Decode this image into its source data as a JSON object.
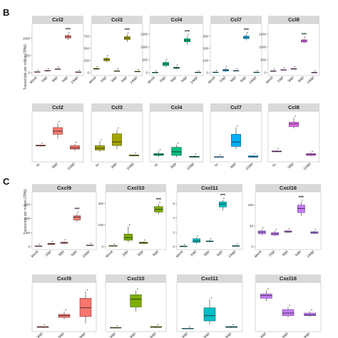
{
  "figure": {
    "letters": [
      "B",
      "C"
    ],
    "ylabel": "Transcripts per million (TPM)",
    "colors": {
      "red": "#f8766d",
      "olive": "#a3a500",
      "green": "#00bf7d",
      "blue": "#00b0f6",
      "magenta": "#e76bf3",
      "lime": "#7cae00",
      "cyan": "#00bfc4",
      "purple": "#c77cff"
    }
  },
  "chart_data": [
    {
      "type": "box",
      "title": "Ccl2",
      "color": "red",
      "categories": [
        "Mock",
        "2dpi",
        "3dpi",
        "5dpi",
        "14dpi"
      ],
      "yticks": [
        "0",
        "500",
        "1000"
      ],
      "ylim": [
        0,
        1350
      ],
      "boxes": [
        [
          18,
          22,
          25,
          28,
          32
        ],
        [
          40,
          50,
          60,
          68,
          78
        ],
        [
          80,
          95,
          105,
          112,
          125
        ],
        [
          960,
          1010,
          1045,
          1085,
          1130
        ],
        [
          12,
          16,
          20,
          24,
          28
        ]
      ],
      "sig": [
        3
      ],
      "sig_text": "***"
    },
    {
      "type": "box",
      "title": "Ccl3",
      "color": "olive",
      "categories": [
        "Mock",
        "2dpi",
        "3dpi",
        "5dpi",
        "14dpi"
      ],
      "yticks": [
        "0",
        "250",
        "500",
        "750"
      ],
      "ylim": [
        0,
        950
      ],
      "boxes": [
        [
          60,
          72,
          82,
          90,
          100
        ],
        [
          220,
          245,
          270,
          295,
          320
        ],
        [
          20,
          28,
          34,
          40,
          50
        ],
        [
          630,
          680,
          710,
          740,
          790
        ],
        [
          12,
          18,
          24,
          30,
          36
        ]
      ],
      "sig": [
        3
      ],
      "sig_text": "***"
    },
    {
      "type": "box",
      "title": "Ccl4",
      "color": "green",
      "categories": [
        "Mock",
        "2dpi",
        "3dpi",
        "5dpi",
        "14dpi"
      ],
      "yticks": [
        "0",
        "500",
        "1000",
        "1500"
      ],
      "ylim": [
        0,
        1800
      ],
      "boxes": [
        [
          8,
          10,
          12,
          14,
          16
        ],
        [
          220,
          280,
          340,
          400,
          470
        ],
        [
          140,
          170,
          190,
          210,
          250
        ],
        [
          1100,
          1200,
          1260,
          1320,
          1420
        ],
        [
          10,
          14,
          18,
          22,
          26
        ]
      ],
      "sig": [
        3
      ],
      "sig_text": "***"
    },
    {
      "type": "box",
      "title": "Ccl7",
      "color": "blue",
      "categories": [
        "Mock",
        "2dpi",
        "3dpi",
        "5dpi",
        "14dpi"
      ],
      "yticks": [
        "0",
        "100",
        "200",
        "300"
      ],
      "ylim": [
        0,
        380
      ],
      "boxes": [
        [
          2,
          3,
          4,
          5,
          6
        ],
        [
          8,
          14,
          20,
          26,
          40
        ],
        [
          12,
          14,
          16,
          18,
          22
        ],
        [
          265,
          280,
          290,
          300,
          315
        ],
        [
          2,
          3,
          4,
          5,
          6
        ]
      ],
      "sig": [
        3
      ],
      "sig_text": "***"
    },
    {
      "type": "box",
      "title": "Ccl8",
      "color": "magenta",
      "categories": [
        "Mock",
        "2dpi",
        "3dpi",
        "5dpi",
        "14dpi"
      ],
      "yticks": [
        "0",
        "500",
        "1000",
        "1500"
      ],
      "ylim": [
        0,
        1800
      ],
      "boxes": [
        [
          40,
          55,
          65,
          75,
          85
        ],
        [
          90,
          100,
          110,
          120,
          130
        ],
        [
          120,
          135,
          150,
          165,
          180
        ],
        [
          1150,
          1190,
          1230,
          1280,
          1320
        ],
        [
          8,
          10,
          12,
          14,
          16
        ]
      ],
      "sig": [
        3
      ],
      "sig_text": "***"
    },
    {
      "type": "box",
      "title": "Ccl2",
      "color": "red",
      "categories": [
        "Irr.",
        "3dpi",
        "10dpi"
      ],
      "yticks": [],
      "ylim": [
        0,
        100
      ],
      "boxes": [
        [
          28,
          29,
          30,
          31,
          32
        ],
        [
          45,
          55,
          62,
          70,
          80
        ],
        [
          18,
          22,
          25,
          30,
          34
        ]
      ],
      "sig": [],
      "sig_text": ""
    },
    {
      "type": "box",
      "title": "Ccl3",
      "color": "olive",
      "categories": [
        "Irr.",
        "3dpi",
        "10dpi"
      ],
      "yticks": [],
      "ylim": [
        0,
        100
      ],
      "boxes": [
        [
          16,
          20,
          24,
          30,
          40
        ],
        [
          22,
          30,
          38,
          56,
          66
        ],
        [
          6,
          7,
          8,
          9,
          10
        ]
      ],
      "sig": [],
      "sig_text": ""
    },
    {
      "type": "box",
      "title": "Ccl4",
      "color": "green",
      "categories": [
        "Irr.",
        "3dpi",
        "10dpi"
      ],
      "yticks": [],
      "ylim": [
        0,
        100
      ],
      "boxes": [
        [
          5,
          8,
          10,
          12,
          18
        ],
        [
          4,
          8,
          16,
          26,
          32
        ],
        [
          3,
          4,
          5,
          6,
          8
        ]
      ],
      "sig": [],
      "sig_text": ""
    },
    {
      "type": "box",
      "title": "Ccl7",
      "color": "blue",
      "categories": [
        "Irr.",
        "3dpi",
        "10dpi"
      ],
      "yticks": [],
      "ylim": [
        0,
        100
      ],
      "boxes": [
        [
          4,
          4,
          5,
          5,
          6
        ],
        [
          22,
          28,
          38,
          55,
          70
        ],
        [
          3,
          4,
          5,
          7,
          9
        ]
      ],
      "sig": [],
      "sig_text": ""
    },
    {
      "type": "box",
      "title": "Ccl8",
      "color": "magenta",
      "categories": [
        "Irr.",
        "3dpi",
        "10dpi"
      ],
      "yticks": [],
      "ylim": [
        0,
        100
      ],
      "boxes": [
        [
          15,
          16,
          17,
          18,
          20
        ],
        [
          68,
          72,
          78,
          82,
          92
        ],
        [
          6,
          8,
          10,
          12,
          14
        ]
      ],
      "sig": [],
      "sig_text": ""
    },
    {
      "type": "box",
      "title": "Cxcl9",
      "color": "red",
      "categories": [
        "Mock",
        "2dpi",
        "3dpi",
        "5dpi",
        "14dpi"
      ],
      "yticks": [
        "0",
        "50",
        "100",
        "150"
      ],
      "ylim": [
        0,
        185
      ],
      "boxes": [
        [
          0,
          1,
          2,
          3,
          4
        ],
        [
          6,
          8,
          10,
          12,
          14
        ],
        [
          10,
          12,
          14,
          16,
          20
        ],
        [
          88,
          95,
          105,
          110,
          118
        ],
        [
          3,
          4,
          5,
          6,
          7
        ]
      ],
      "sig": [
        3
      ],
      "sig_text": "***"
    },
    {
      "type": "box",
      "title": "Cxcl10",
      "color": "lime",
      "categories": [
        "Mock",
        "2dpi",
        "3dpi",
        "5dpi"
      ],
      "yticks": [
        "0",
        "100",
        "200"
      ],
      "ylim": [
        0,
        240
      ],
      "boxes": [
        [
          2,
          3,
          4,
          5,
          6
        ],
        [
          20,
          30,
          42,
          58,
          95
        ],
        [
          12,
          15,
          18,
          21,
          24
        ],
        [
          150,
          160,
          172,
          185,
          198
        ]
      ],
      "sig": [
        3
      ],
      "sig_text": "***"
    },
    {
      "type": "box",
      "title": "Cxcl11",
      "color": "cyan",
      "categories": [
        "Mock",
        "2dpi",
        "3dpi",
        "5dpi",
        "14dpi"
      ],
      "yticks": [
        "0",
        "2",
        "4",
        "6"
      ],
      "ylim": [
        0,
        7.2
      ],
      "boxes": [
        [
          0,
          0,
          0.05,
          0.1,
          0.1
        ],
        [
          0.4,
          0.6,
          0.8,
          1.1,
          1.3
        ],
        [
          0.6,
          0.7,
          0.75,
          0.8,
          0.9
        ],
        [
          5.0,
          5.5,
          5.9,
          6.2,
          6.5
        ],
        [
          0,
          0.05,
          0.1,
          0.15,
          0.2
        ]
      ],
      "sig": [
        3
      ],
      "sig_text": "***"
    },
    {
      "type": "box",
      "title": "Cxcl16",
      "color": "purple",
      "categories": [
        "Mock",
        "2dpi",
        "3dpi",
        "5dpi",
        "14dpi"
      ],
      "yticks": [
        "0",
        "50",
        "100"
      ],
      "ylim": [
        0,
        125
      ],
      "boxes": [
        [
          28,
          31,
          35,
          38,
          42
        ],
        [
          26,
          28,
          31,
          34,
          38
        ],
        [
          33,
          35,
          36,
          38,
          40
        ],
        [
          74,
          82,
          92,
          100,
          108
        ],
        [
          30,
          32,
          34,
          36,
          38
        ]
      ],
      "sig": [
        3
      ],
      "sig_text": "***"
    },
    {
      "type": "box",
      "title": "Cxcl9",
      "color": "red",
      "categories": [
        "3dpi",
        "5dpi",
        "9dpi"
      ],
      "yticks": [],
      "ylim": [
        0,
        100
      ],
      "boxes": [
        [
          2,
          3,
          4,
          5,
          6
        ],
        [
          22,
          26,
          30,
          33,
          40
        ],
        [
          12,
          28,
          48,
          70,
          86
        ]
      ],
      "sig": [],
      "sig_text": ""
    },
    {
      "type": "box",
      "title": "Cxcl10",
      "color": "lime",
      "categories": [
        "3dpi",
        "5dpi",
        "9dpi"
      ],
      "yticks": [],
      "ylim": [
        0,
        100
      ],
      "boxes": [
        [
          1,
          2,
          2,
          3,
          3
        ],
        [
          40,
          50,
          68,
          78,
          88
        ],
        [
          2,
          3,
          4,
          5,
          6
        ]
      ],
      "sig": [],
      "sig_text": ""
    },
    {
      "type": "box",
      "title": "Cxcl11",
      "color": "cyan",
      "categories": [
        "3dpi",
        "5dpi",
        "9dpi"
      ],
      "yticks": [],
      "ylim": [
        0,
        100
      ],
      "boxes": [
        [
          0,
          0,
          0,
          1,
          1
        ],
        [
          10,
          18,
          30,
          48,
          68
        ],
        [
          2,
          3,
          4,
          5,
          6
        ]
      ],
      "sig": [],
      "sig_text": ""
    },
    {
      "type": "box",
      "title": "Cxcl16",
      "color": "purple",
      "categories": [
        "3dpi",
        "5dpi",
        "9dpi"
      ],
      "yticks": [],
      "ylim": [
        0,
        100
      ],
      "boxes": [
        [
          64,
          70,
          76,
          80,
          88
        ],
        [
          26,
          30,
          36,
          44,
          50
        ],
        [
          28,
          30,
          32,
          36,
          40
        ]
      ],
      "sig": [],
      "sig_text": ""
    }
  ]
}
